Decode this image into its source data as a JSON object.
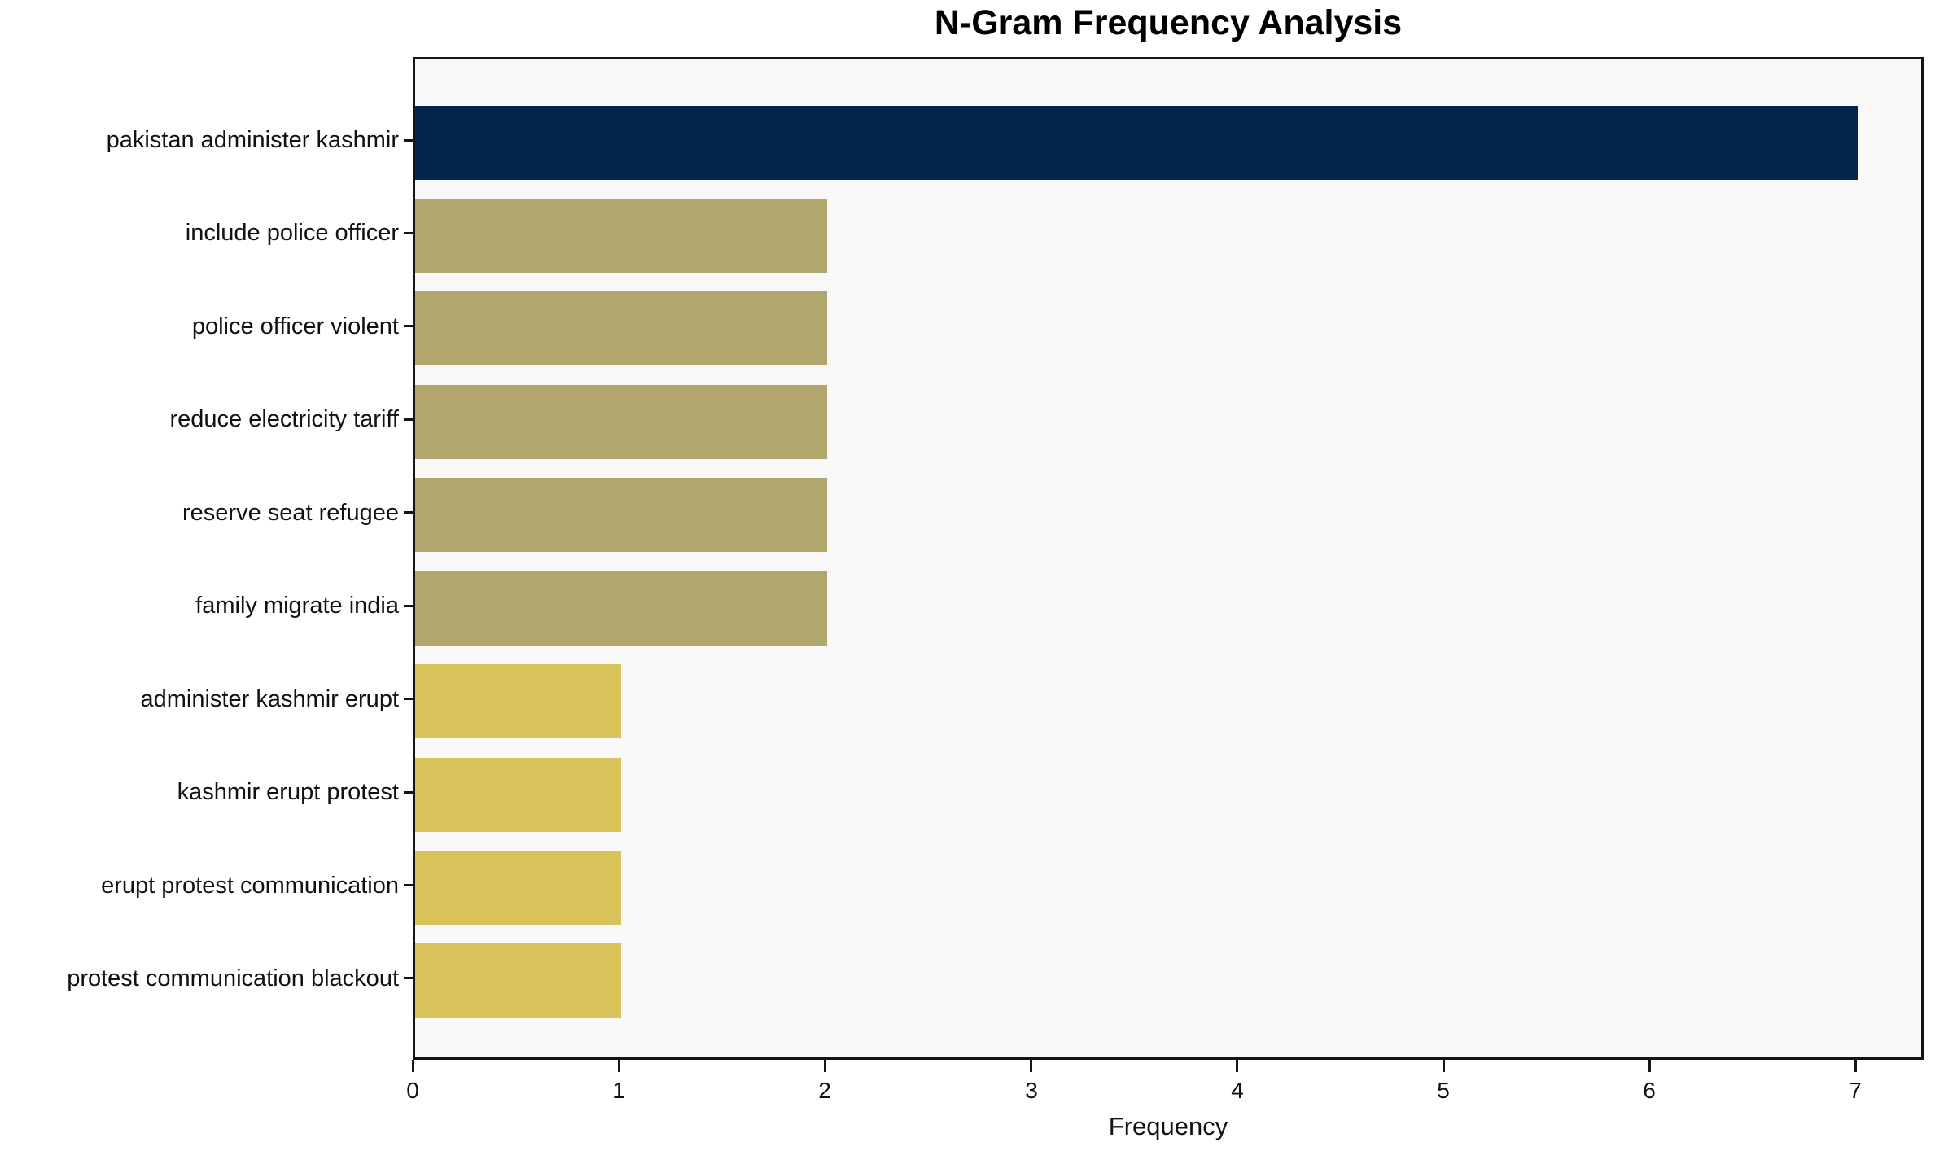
{
  "title": "N-Gram Frequency Analysis",
  "chart_data": {
    "type": "bar",
    "orientation": "horizontal",
    "title": "N-Gram Frequency Analysis",
    "xlabel": "Frequency",
    "ylabel": "",
    "categories": [
      "pakistan administer kashmir",
      "include police officer",
      "police officer violent",
      "reduce electricity tariff",
      "reserve seat refugee",
      "family migrate india",
      "administer kashmir erupt",
      "kashmir erupt protest",
      "erupt protest communication",
      "protest communication blackout"
    ],
    "values": [
      7,
      2,
      2,
      2,
      2,
      2,
      1,
      1,
      1,
      1
    ],
    "bar_colors": [
      "#02254C",
      "#B0A66E",
      "#B0A66E",
      "#B0A66E",
      "#B0A66E",
      "#B0A66E",
      "#D9C45C",
      "#D9C45C",
      "#D9C45C",
      "#D9C45C"
    ],
    "xlim": [
      0,
      7.33
    ],
    "xticks": [
      "0",
      "1",
      "2",
      "3",
      "4",
      "5",
      "6",
      "7"
    ],
    "grid": false,
    "legend": "none",
    "plot_background": "#F8F8F8",
    "figure_background": "#FFFFFF",
    "spine_color": "#151515"
  }
}
